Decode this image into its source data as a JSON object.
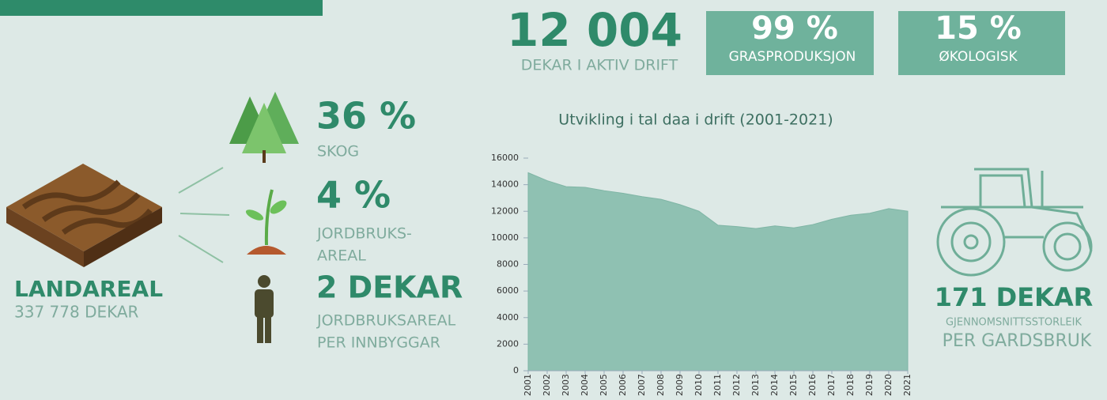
{
  "kpis": [
    {
      "value": "12 004",
      "label": "DEKAR I AKTIV DRIFT"
    },
    {
      "value": "99 %",
      "label": "GRASPRODUKSJON"
    },
    {
      "value": "15 %",
      "label": "ØKOLOGISK"
    }
  ],
  "land": {
    "title": "LANDAREAL",
    "value": "337 778 DEKAR"
  },
  "shares": [
    {
      "value": "36 %",
      "lines": [
        "SKOG"
      ]
    },
    {
      "value": "4 %",
      "lines": [
        "JORDBRUKS-",
        "AREAL"
      ]
    },
    {
      "value": "2 DEKAR",
      "lines": [
        "JORDBRUKSAREAL",
        "PER INNBYGGAR"
      ]
    }
  ],
  "farm": {
    "value": "171 DEKAR",
    "lines": [
      "GJENNOMSNITTSSTORLEIK",
      "PER GARDSBRUK"
    ]
  },
  "chart_data": {
    "type": "area",
    "title": "Utvikling i tal daa i drift (2001-2021)",
    "categories": [
      "2001",
      "2002",
      "2003",
      "2004",
      "2005",
      "2006",
      "2007",
      "2008",
      "2009",
      "2010",
      "2011",
      "2012",
      "2013",
      "2014",
      "2015",
      "2016",
      "2017",
      "2018",
      "2019",
      "2020",
      "2021"
    ],
    "values": [
      14900,
      14300,
      13850,
      13800,
      13550,
      13350,
      13100,
      12900,
      12500,
      12000,
      10950,
      10850,
      10700,
      10900,
      10750,
      11000,
      11400,
      11700,
      11850,
      12200,
      12004
    ],
    "color": "#8fc1b2",
    "ylim": [
      0,
      16000
    ],
    "yticks": [
      0,
      2000,
      4000,
      6000,
      8000,
      10000,
      12000,
      14000,
      16000
    ]
  }
}
